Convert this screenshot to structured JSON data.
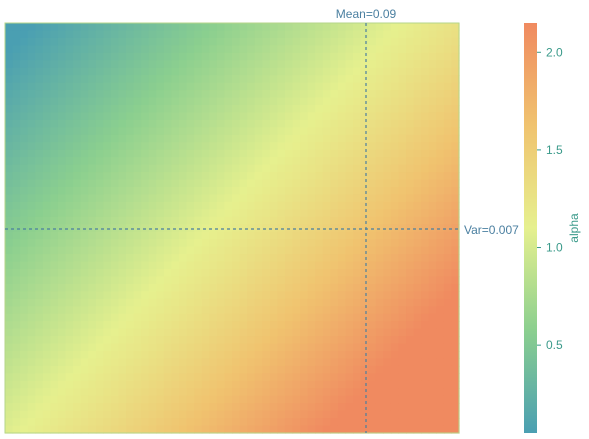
{
  "chart_data": {
    "type": "heatmap",
    "colormap": [
      "#4a9fb2",
      "#8bcf8f",
      "#e6f08e",
      "#f0c36f",
      "#f08a60"
    ],
    "colorbar": {
      "label": "alpha",
      "ticks": [
        "0.5",
        "1.0",
        "1.5",
        "2.0"
      ],
      "tick_values": [
        0.5,
        1.0,
        1.5,
        2.0
      ],
      "range": [
        0.05,
        2.15
      ]
    },
    "reference_lines": {
      "vertical": {
        "label": "Mean=0.09",
        "color": "#4a7fa0"
      },
      "horizontal": {
        "label": "Var=0.007",
        "color": "#4a7fa0"
      }
    },
    "grid": false,
    "legend": "right"
  }
}
